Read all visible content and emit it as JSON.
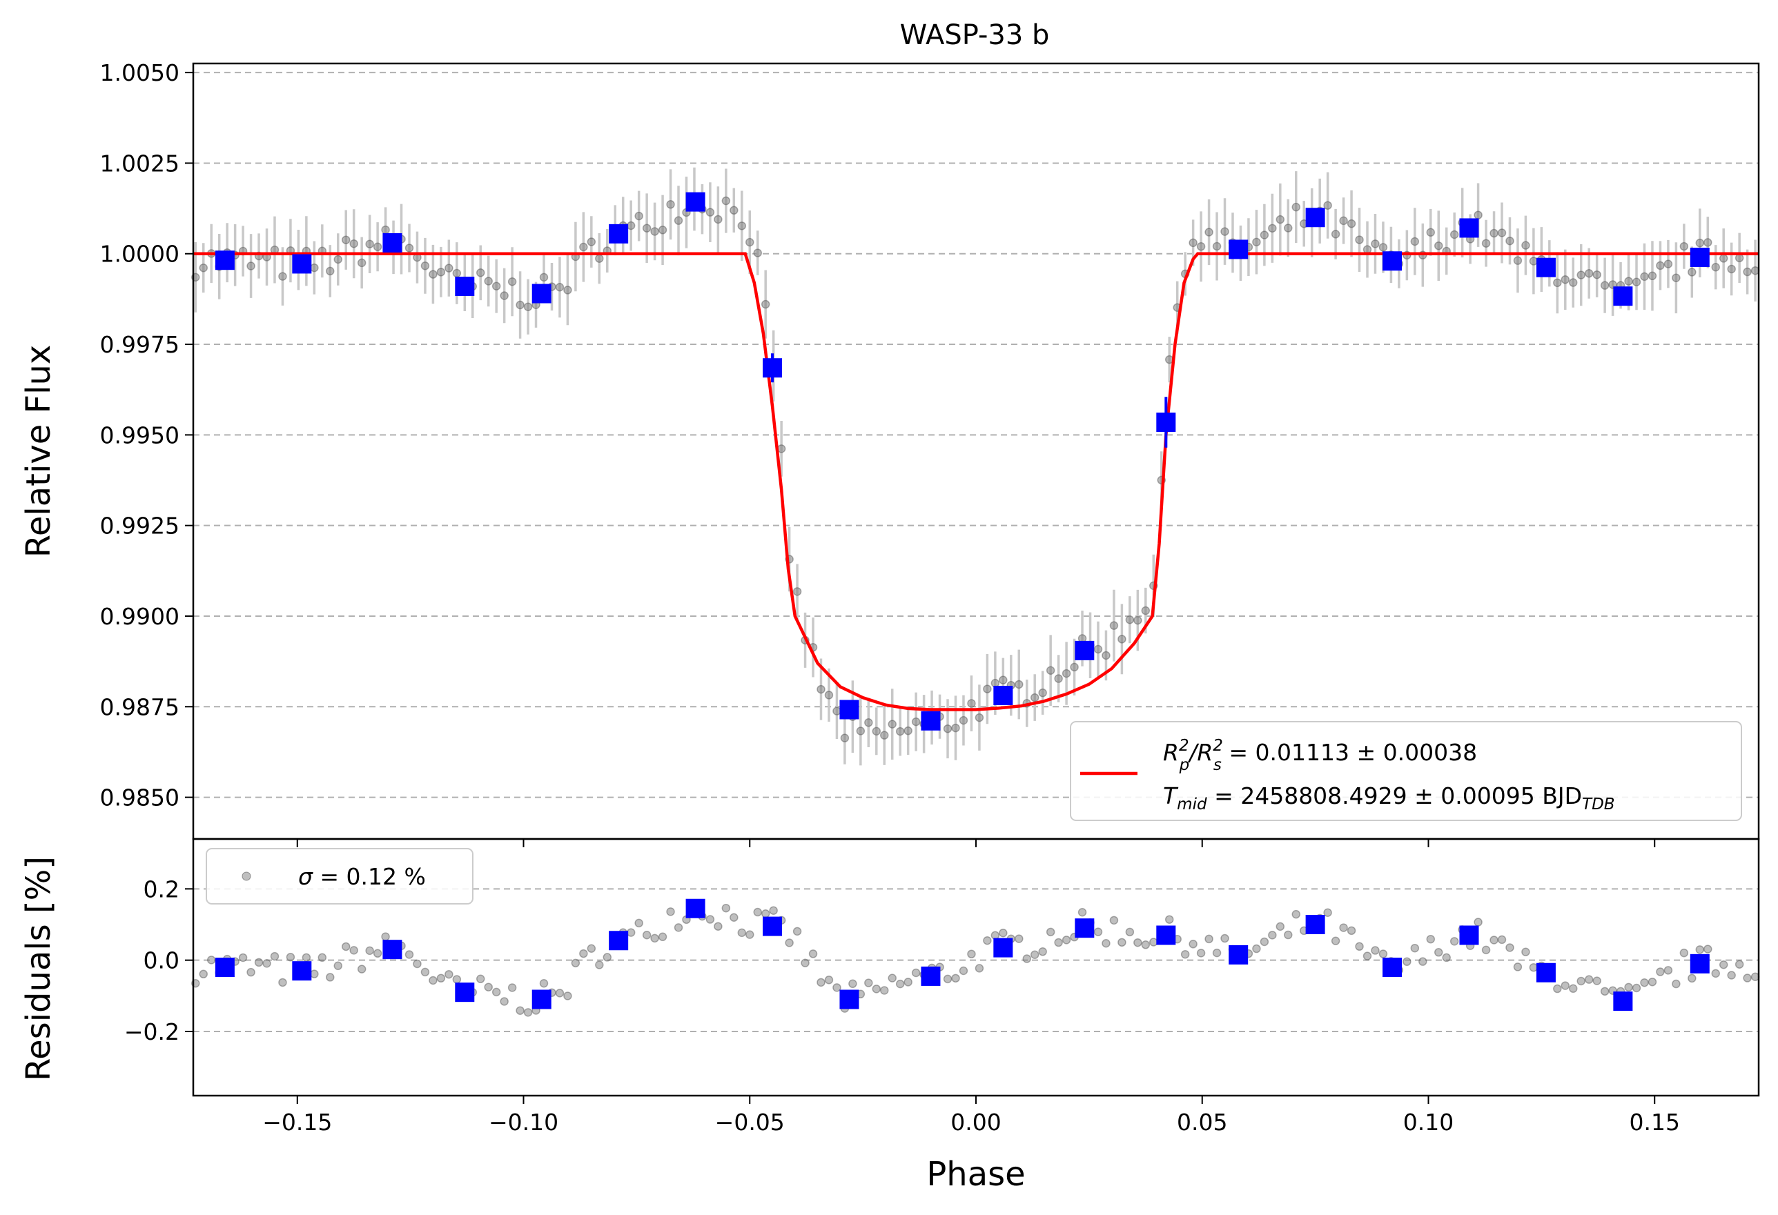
{
  "chart_data": [
    {
      "panel": "light-curve",
      "type": "scatter",
      "title": "WASP-33 b",
      "xlabel": "",
      "ylabel": "Relative Flux",
      "xlim": [
        -0.173,
        0.173
      ],
      "ylim": [
        0.98385,
        1.00525
      ],
      "yticks": [
        0.985,
        0.9875,
        0.99,
        0.9925,
        0.995,
        0.9975,
        1.0,
        1.0025,
        1.005
      ],
      "ytick_labels": [
        "0.9850",
        "0.9875",
        "0.9900",
        "0.9925",
        "0.9950",
        "0.9975",
        "1.0000",
        "1.0025",
        "1.0050"
      ],
      "grid": "horizontal dashed",
      "legend": {
        "placement": "lower right",
        "line1_lhs_main": "R",
        "line1_lhs_sup1": "2",
        "line1_lhs_sub1": "p",
        "line1_lhs_slash": "/",
        "line1_lhs_main2": "R",
        "line1_lhs_sup2": "2",
        "line1_lhs_sub2": "s",
        "line1_rhs": " = 0.01113 ± 0.00038",
        "line2_lhs_main": "T",
        "line2_lhs_sub": "mid",
        "line2_rhs": " = 2458808.4929 ± 0.00095 BJD",
        "line2_unit_sub": "TDB"
      },
      "series": [
        {
          "role": "binned",
          "color": "#0000ff",
          "x": [
            -0.166,
            -0.149,
            -0.129,
            -0.113,
            -0.096,
            -0.079,
            -0.062,
            -0.045,
            -0.028,
            -0.01,
            0.006,
            0.024,
            0.042,
            0.058,
            0.075,
            0.092,
            0.109,
            0.126,
            0.143,
            0.16
          ],
          "y": [
            0.99982,
            0.99972,
            1.0003,
            0.9991,
            0.9989,
            1.00055,
            1.00143,
            0.99685,
            0.98742,
            0.98711,
            0.98781,
            0.98905,
            0.99535,
            1.00012,
            1.001,
            0.9998,
            1.00071,
            0.99962,
            0.99883,
            0.9999
          ],
          "yerr": [
            0.0001,
            0.0001,
            0.0001,
            0.0001,
            0.0001,
            0.0001,
            0.0001,
            0.0004,
            0.0001,
            0.0001,
            0.0001,
            0.00015,
            0.0007,
            0.0001,
            0.0001,
            0.0001,
            0.0001,
            0.0001,
            0.00015,
            0.0001
          ]
        },
        {
          "role": "model",
          "color": "#ff0000",
          "x": [
            -0.173,
            -0.051,
            -0.049,
            -0.047,
            -0.045,
            -0.043,
            -0.0415,
            -0.04,
            -0.035,
            -0.03,
            -0.025,
            -0.02,
            -0.015,
            -0.01,
            -0.005,
            0.0,
            0.005,
            0.01,
            0.015,
            0.02,
            0.025,
            0.03,
            0.035,
            0.039,
            0.0405,
            0.042,
            0.044,
            0.046,
            0.048,
            0.049,
            0.173
          ],
          "y": [
            1.0,
            1.0,
            0.9992,
            0.9978,
            0.9958,
            0.9935,
            0.9913,
            0.99,
            0.9887,
            0.98805,
            0.98775,
            0.98755,
            0.98745,
            0.98742,
            0.98742,
            0.98742,
            0.98746,
            0.98752,
            0.98765,
            0.98785,
            0.98812,
            0.98855,
            0.98925,
            0.99,
            0.992,
            0.995,
            0.9975,
            0.9992,
            0.99985,
            1.0,
            1.0
          ]
        }
      ]
    },
    {
      "panel": "residuals",
      "type": "scatter",
      "xlabel": "Phase",
      "ylabel": "Residuals [%]",
      "xlim": [
        -0.173,
        0.173
      ],
      "ylim": [
        -0.38,
        0.34
      ],
      "xticks": [
        -0.15,
        -0.1,
        -0.05,
        0.0,
        0.05,
        0.1,
        0.15
      ],
      "xtick_labels": [
        "−0.15",
        "−0.10",
        "−0.05",
        "0.00",
        "0.05",
        "0.10",
        "0.15"
      ],
      "yticks": [
        -0.2,
        0.0,
        0.2
      ],
      "ytick_labels": [
        "−0.2",
        "0.0",
        "0.2"
      ],
      "grid": "horizontal dashed",
      "legend": {
        "placement": "upper left",
        "label_var": "σ",
        "label_rest": " = 0.12 %"
      },
      "series": [
        {
          "role": "binned",
          "color": "#0000ff",
          "x": [
            -0.166,
            -0.149,
            -0.129,
            -0.113,
            -0.096,
            -0.079,
            -0.062,
            -0.045,
            -0.028,
            -0.01,
            0.006,
            0.024,
            0.042,
            0.058,
            0.075,
            0.092,
            0.109,
            0.126,
            0.143,
            0.16
          ],
          "y": [
            -0.02,
            -0.03,
            0.03,
            -0.09,
            -0.11,
            0.055,
            0.145,
            0.095,
            -0.11,
            -0.045,
            0.035,
            0.09,
            0.07,
            0.015,
            0.1,
            -0.02,
            0.07,
            -0.035,
            -0.115,
            -0.01
          ]
        }
      ]
    }
  ],
  "colors": {
    "raw_points": "#808080",
    "raw_errorbars": "#c8c8c8",
    "grid": "#b0b0b0"
  }
}
